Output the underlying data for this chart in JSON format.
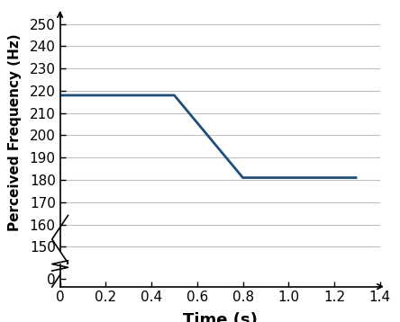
{
  "x": [
    0,
    0.5,
    0.8,
    1.3
  ],
  "y": [
    218,
    218,
    181,
    181
  ],
  "xlabel": "Time (s)",
  "ylabel": "Perceived Frequency (Hz)",
  "xlim": [
    0,
    1.4
  ],
  "ylim_main": [
    148,
    255
  ],
  "yticks_main": [
    150,
    160,
    170,
    180,
    190,
    200,
    210,
    220,
    230,
    240,
    250
  ],
  "xticks": [
    0,
    0.2,
    0.4,
    0.6,
    0.8,
    1.0,
    1.2,
    1.4
  ],
  "line_color": "#1f4e79",
  "line_width": 2.0,
  "grid_color": "#c0c0c0",
  "xlabel_fontsize": 13,
  "ylabel_fontsize": 11,
  "tick_fontsize": 11,
  "background_color": "#ffffff"
}
